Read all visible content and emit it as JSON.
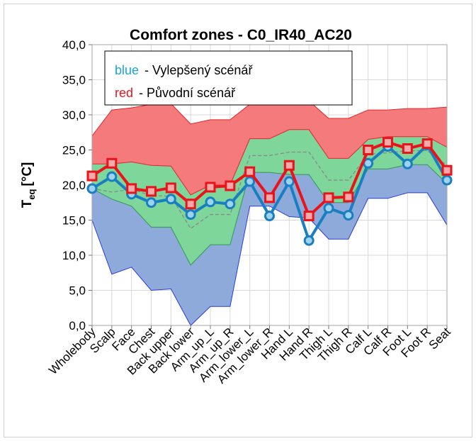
{
  "chart_data": {
    "type": "zones",
    "title": "Comfort zones - C0_IR40_AC20",
    "ylabel": {
      "main": "T",
      "sub": "eq",
      "unit": "[°C]"
    },
    "categories": [
      "Wholebody",
      "Scalp",
      "Face",
      "Chest",
      "Back upper",
      "Back lower",
      "Arm_up_L",
      "Arm_up_R",
      "Arm_lower_L",
      "Arm_lower_R",
      "Hand L",
      "Hand R",
      "Thigh L",
      "Thigh R",
      "Calf L",
      "Calf R",
      "Foot L",
      "Foot R",
      "Seat"
    ],
    "ylim": [
      0,
      40
    ],
    "yticks": [
      {
        "value": 0,
        "label": "0,0"
      },
      {
        "value": 5,
        "label": "5,0"
      },
      {
        "value": 10,
        "label": "10,0"
      },
      {
        "value": 15,
        "label": "15,0"
      },
      {
        "value": 20,
        "label": "20,0"
      },
      {
        "value": 25,
        "label": "25,0"
      },
      {
        "value": 30,
        "label": "30,0"
      },
      {
        "value": 35,
        "label": "35,0"
      },
      {
        "value": 40,
        "label": "40,0"
      }
    ],
    "grid": true,
    "zone_bounds": [
      [
        15,
        7.3,
        8.3,
        5.0,
        5.2,
        0,
        2.7,
        2.7,
        17,
        17,
        15.5,
        15.3,
        12.3,
        12.3,
        18.1,
        18.1,
        18.9,
        18.9,
        14.3
      ],
      [
        19.5,
        18,
        17,
        14,
        14,
        8.6,
        11.5,
        11.5,
        21.8,
        21.8,
        21.5,
        21.5,
        17.5,
        17.5,
        22.3,
        22.3,
        22.9,
        22.9,
        20.2
      ],
      [
        23,
        23,
        23.3,
        22.8,
        22.7,
        18.6,
        20,
        20,
        26.6,
        26.6,
        27.9,
        27.9,
        23.8,
        23.8,
        26.5,
        26.9,
        26.9,
        26.9,
        25.4
      ],
      [
        27,
        30.7,
        31,
        31.5,
        31.6,
        28.7,
        29.3,
        29.3,
        31.5,
        31.5,
        32,
        32,
        29.5,
        29.5,
        30.7,
        30.7,
        30.9,
        30.9,
        31.1
      ]
    ],
    "zone_colors": [
      "#8eaadb",
      "#7fd69b",
      "#f47a7c"
    ],
    "zone_edge_colors": [
      "#2a3bd6",
      "#2f9a4e",
      "#e0262a"
    ],
    "neutral": {
      "color": "#888888",
      "values": [
        19.5,
        19,
        19.4,
        18.5,
        18.4,
        13.8,
        15.8,
        15.8,
        24.2,
        24.2,
        24.7,
        24.7,
        20.7,
        20.7,
        24.4,
        24.6,
        24.9,
        24.9,
        22.8
      ]
    },
    "series": [
      {
        "name": "blue",
        "legend_text": "-  Vylepšený scénář",
        "color": "#1a7fc0",
        "marker": "circle",
        "values": [
          19.5,
          21.2,
          18.7,
          17.5,
          18.0,
          15.8,
          17.6,
          17.3,
          20.5,
          15.6,
          20.5,
          12.1,
          16.7,
          15.7,
          23.1,
          25.5,
          23.0,
          25.7,
          20.7
        ]
      },
      {
        "name": "red",
        "legend_text": "-  Původní scénář",
        "color": "#e8141a",
        "marker": "square",
        "values": [
          21.3,
          23.1,
          19.5,
          19.1,
          19.6,
          17.3,
          19.7,
          19.9,
          21.9,
          18.2,
          22.8,
          15.6,
          18.2,
          18.3,
          25.0,
          26.1,
          25.2,
          25.9,
          22.1
        ]
      }
    ]
  }
}
